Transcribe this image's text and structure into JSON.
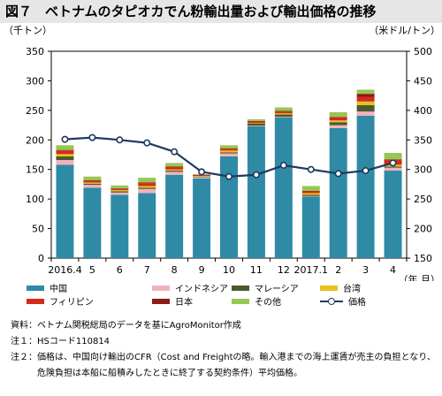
{
  "header": {
    "title": "図７　ベトナムのタピオカでん粉輸出量および輸出価格の推移"
  },
  "chart_data": {
    "type": "bar",
    "y_left_unit": "（千トン）",
    "y_right_unit": "（米ドル/トン）",
    "x_unit": "（年.月）",
    "categories": [
      "2016.4",
      "5",
      "6",
      "7",
      "8",
      "9",
      "10",
      "11",
      "12",
      "2017.1",
      "2",
      "3",
      "4"
    ],
    "ylim_left": [
      0,
      350
    ],
    "ylim_right": [
      150,
      500
    ],
    "yticks_left": [
      0,
      50,
      100,
      150,
      200,
      250,
      300,
      350
    ],
    "yticks_right": [
      150,
      200,
      250,
      300,
      350,
      400,
      450,
      500
    ],
    "stack_order": [
      "中国",
      "インドネシア",
      "マレーシア",
      "台湾",
      "フィリピン",
      "日本",
      "その他"
    ],
    "series": [
      {
        "name": "中国",
        "color": "#2f8aa6",
        "values": [
          158,
          119,
          107,
          110,
          141,
          135,
          172,
          223,
          238,
          104,
          220,
          241,
          148
        ]
      },
      {
        "name": "インドネシア",
        "color": "#f0b3bc",
        "values": [
          8,
          5,
          4,
          7,
          5,
          2,
          5,
          1,
          1,
          1,
          5,
          7,
          5
        ]
      },
      {
        "name": "マレーシア",
        "color": "#4a5a2e",
        "values": [
          6,
          2,
          2,
          2,
          2,
          1,
          2,
          4,
          4,
          2,
          5,
          11,
          2
        ]
      },
      {
        "name": "台湾",
        "color": "#e8c21a",
        "values": [
          4,
          2,
          2,
          3,
          2,
          1,
          3,
          1,
          2,
          3,
          3,
          6,
          3
        ]
      },
      {
        "name": "フィリピン",
        "color": "#d42a1e",
        "values": [
          6,
          3,
          2,
          5,
          4,
          1,
          3,
          2,
          3,
          3,
          5,
          8,
          8
        ]
      },
      {
        "name": "日本",
        "color": "#8a1c14",
        "values": [
          1,
          1,
          1,
          1,
          1,
          1,
          1,
          1,
          1,
          1,
          1,
          5,
          1
        ]
      },
      {
        "name": "その他",
        "color": "#98c754",
        "values": [
          8,
          6,
          5,
          8,
          6,
          1,
          5,
          3,
          6,
          8,
          8,
          7,
          11
        ]
      }
    ],
    "line": {
      "name": "価格",
      "color": "#1f3a5f",
      "axis": "right",
      "values": [
        351,
        354,
        350,
        345,
        330,
        296,
        288,
        291,
        307,
        300,
        293,
        298,
        311
      ]
    }
  },
  "notes": [
    {
      "prefix": "資料：",
      "text": "ベトナム関税総局のデータを基にAgroMonitor作成"
    },
    {
      "prefix": "注１：",
      "text": "HSコード110814"
    },
    {
      "prefix": "注２：",
      "text": "価格は、中国向け輸出のCFR（Cost and Freightの略。輸入港までの海上運賃が売主の負担となり、危険負担は本船に船積みしたときに終了する契約条件）平均価格。"
    }
  ]
}
